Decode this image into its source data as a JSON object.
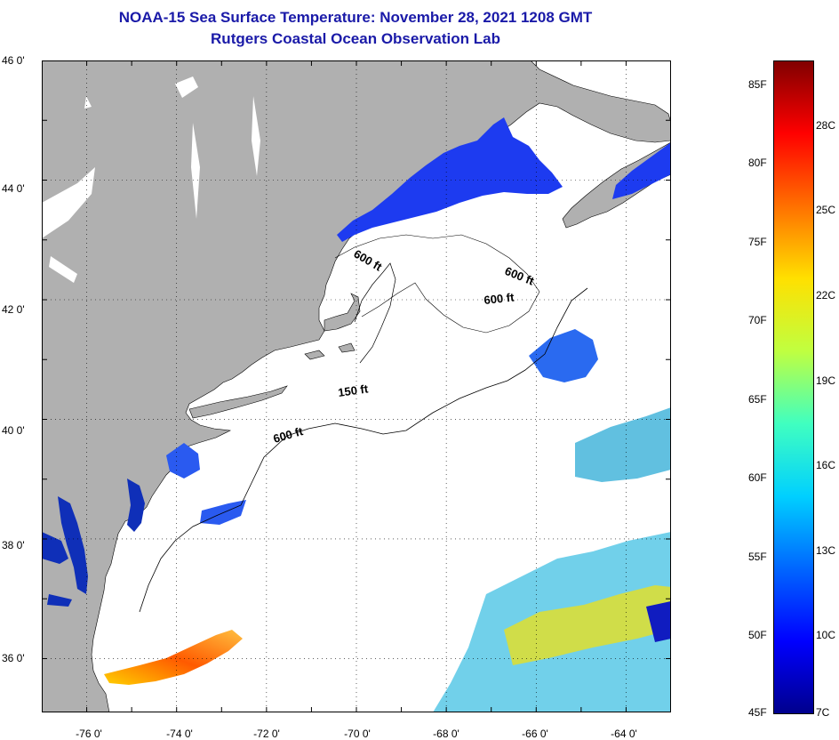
{
  "header": {
    "title": "NOAA-15 Sea Surface Temperature:  November 28, 2021 1208 GMT",
    "subtitle": "Rutgers Coastal Ocean Observation Lab"
  },
  "map": {
    "latitude_labels": [
      "46 0'",
      "44 0'",
      "42 0'",
      "40 0'",
      "38 0'",
      "36 0'"
    ],
    "longitude_labels": [
      "-76 0'",
      "-74 0'",
      "-72 0'",
      "-70 0'",
      "-68 0'",
      "-66 0'",
      "-64 0'"
    ],
    "lat_values": [
      46,
      44,
      42,
      40,
      38,
      36
    ],
    "lon_values": [
      -76,
      -74,
      -72,
      -70,
      -68,
      -66,
      -64
    ],
    "extent": {
      "lon_min": -77,
      "lon_max": -63,
      "lat_min": 35.1,
      "lat_max": 46
    },
    "contour_labels": [
      "600 ft",
      "600 ft",
      "600 ft",
      "150 ft",
      "600 ft"
    ],
    "colors": {
      "land": "#b0b0b0",
      "ocean_missing": "#ffffff"
    }
  },
  "colorbar": {
    "fahrenheit_labels": [
      "85F",
      "80F",
      "75F",
      "70F",
      "65F",
      "60F",
      "55F",
      "50F",
      "45F"
    ],
    "celsius_labels": [
      "28C",
      "25C",
      "22C",
      "19C",
      "16C",
      "13C",
      "10C",
      "7C"
    ],
    "fahrenheit_values": [
      85,
      80,
      75,
      70,
      65,
      60,
      55,
      50,
      45
    ],
    "celsius_values": [
      28,
      25,
      22,
      19,
      16,
      13,
      10,
      7
    ],
    "colors": [
      "#00008c",
      "#0000ff",
      "#0066ff",
      "#00d0ff",
      "#40ffc0",
      "#c0ff40",
      "#ffe000",
      "#ff7000",
      "#ff0000",
      "#800000"
    ]
  }
}
